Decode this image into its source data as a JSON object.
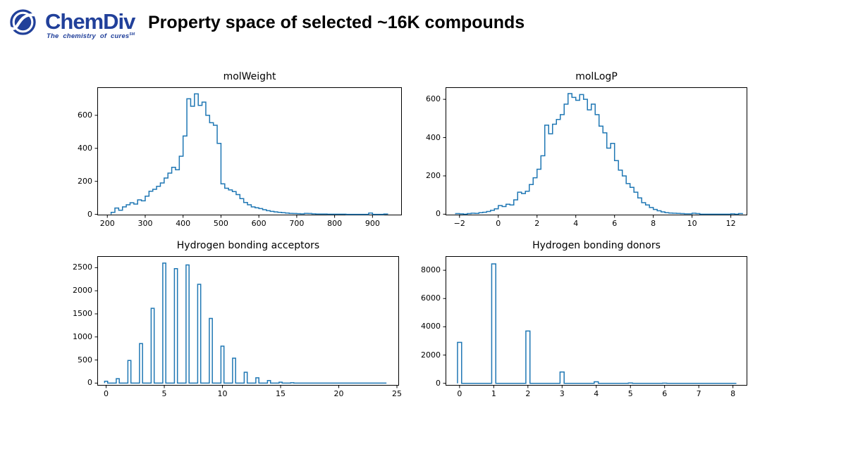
{
  "header": {
    "logo": {
      "name": "ChemDiv",
      "tagline": "The chemistry of cures",
      "trademark": "SM"
    },
    "title": "Property space of selected ~16K compounds"
  },
  "colors": {
    "histogram_line": "#1f77b4",
    "logo_navy": "#21409a",
    "axis": "#000000"
  },
  "chart_data": [
    {
      "type": "histogram",
      "title": "molWeight",
      "xlabel": "",
      "ylabel": "",
      "xlim": [
        173.5,
        977.5
      ],
      "ylim": [
        -6,
        770
      ],
      "xticks": [
        200,
        300,
        400,
        500,
        600,
        700,
        800,
        900
      ],
      "xtick_labels": [
        "200",
        "300",
        "400",
        "500",
        "600",
        "700",
        "800",
        "900"
      ],
      "yticks": [
        0,
        200,
        400,
        600
      ],
      "ytick_labels": [
        "0",
        "200",
        "400",
        "600"
      ],
      "bin_start": 210,
      "bin_width": 10,
      "counts": [
        12,
        38,
        25,
        45,
        58,
        70,
        62,
        88,
        82,
        110,
        140,
        152,
        170,
        190,
        220,
        250,
        285,
        270,
        352,
        475,
        700,
        655,
        730,
        660,
        680,
        600,
        555,
        540,
        430,
        185,
        158,
        148,
        138,
        120,
        95,
        72,
        58,
        45,
        40,
        35,
        28,
        22,
        18,
        15,
        12,
        10,
        8,
        6,
        5,
        4,
        3,
        6,
        5,
        3,
        2,
        2,
        2,
        1,
        1,
        1,
        1,
        1,
        0,
        0,
        0,
        0,
        0,
        0,
        8,
        0,
        0,
        0,
        2
      ]
    },
    {
      "type": "histogram",
      "title": "molLogP",
      "xlabel": "",
      "ylabel": "",
      "xlim": [
        -2.72,
        12.85
      ],
      "ylim": [
        -6,
        663
      ],
      "xticks": [
        -2,
        0,
        2,
        4,
        6,
        8,
        10,
        12
      ],
      "xtick_labels": [
        "−2",
        "0",
        "2",
        "4",
        "6",
        "8",
        "10",
        "12"
      ],
      "yticks": [
        0,
        200,
        400,
        600
      ],
      "ytick_labels": [
        "0",
        "200",
        "400",
        "600"
      ],
      "bin_start": -2.2,
      "bin_width": 0.2,
      "counts": [
        3,
        2,
        0,
        3,
        5,
        4,
        8,
        10,
        14,
        20,
        28,
        45,
        40,
        52,
        48,
        75,
        115,
        108,
        120,
        155,
        190,
        235,
        305,
        465,
        420,
        470,
        495,
        520,
        575,
        630,
        610,
        595,
        625,
        600,
        545,
        575,
        520,
        460,
        425,
        345,
        370,
        280,
        230,
        200,
        160,
        140,
        115,
        85,
        60,
        48,
        35,
        25,
        18,
        12,
        8,
        6,
        5,
        4,
        3,
        2,
        2,
        5,
        3,
        0,
        0,
        0,
        0,
        0,
        0,
        0,
        0,
        2,
        0,
        3
      ]
    },
    {
      "type": "histogram",
      "title": "Hydrogen bonding acceptors",
      "xlabel": "",
      "ylabel": "",
      "xlim": [
        -0.76,
        25.18
      ],
      "ylim": [
        -55,
        2750
      ],
      "xticks": [
        0,
        5,
        10,
        15,
        20,
        25
      ],
      "xtick_labels": [
        "0",
        "5",
        "10",
        "15",
        "20",
        "25"
      ],
      "yticks": [
        0,
        500,
        1000,
        1500,
        2000,
        2500
      ],
      "ytick_labels": [
        "0",
        "500",
        "1000",
        "1500",
        "2000",
        "2500"
      ],
      "bar_width": 0.26,
      "baseline": [
        -0.13,
        24.1
      ],
      "bars": [
        [
          0,
          40
        ],
        [
          1,
          95
        ],
        [
          2,
          490
        ],
        [
          3,
          855
        ],
        [
          4,
          1620
        ],
        [
          5,
          2600
        ],
        [
          6,
          2480
        ],
        [
          7,
          2560
        ],
        [
          8,
          2140
        ],
        [
          9,
          1400
        ],
        [
          10,
          800
        ],
        [
          11,
          540
        ],
        [
          12,
          235
        ],
        [
          13,
          115
        ],
        [
          14,
          55
        ],
        [
          15,
          20
        ],
        [
          16,
          8
        ]
      ]
    },
    {
      "type": "histogram",
      "title": "Hydrogen bonding donors",
      "xlabel": "",
      "ylabel": "",
      "xlim": [
        -0.41,
        8.42
      ],
      "ylim": [
        -165,
        9000
      ],
      "xticks": [
        0,
        1,
        2,
        3,
        4,
        5,
        6,
        7,
        8
      ],
      "xtick_labels": [
        "0",
        "1",
        "2",
        "3",
        "4",
        "5",
        "6",
        "7",
        "8"
      ],
      "yticks": [
        0,
        2000,
        4000,
        6000,
        8000
      ],
      "ytick_labels": [
        "0",
        "2000",
        "4000",
        "6000",
        "8000"
      ],
      "bar_width": 0.12,
      "baseline": [
        -0.06,
        8.1
      ],
      "bars": [
        [
          0,
          2900
        ],
        [
          1,
          8450
        ],
        [
          2,
          3700
        ],
        [
          3,
          800
        ],
        [
          4,
          110
        ],
        [
          5,
          20
        ],
        [
          6,
          10
        ]
      ]
    }
  ]
}
